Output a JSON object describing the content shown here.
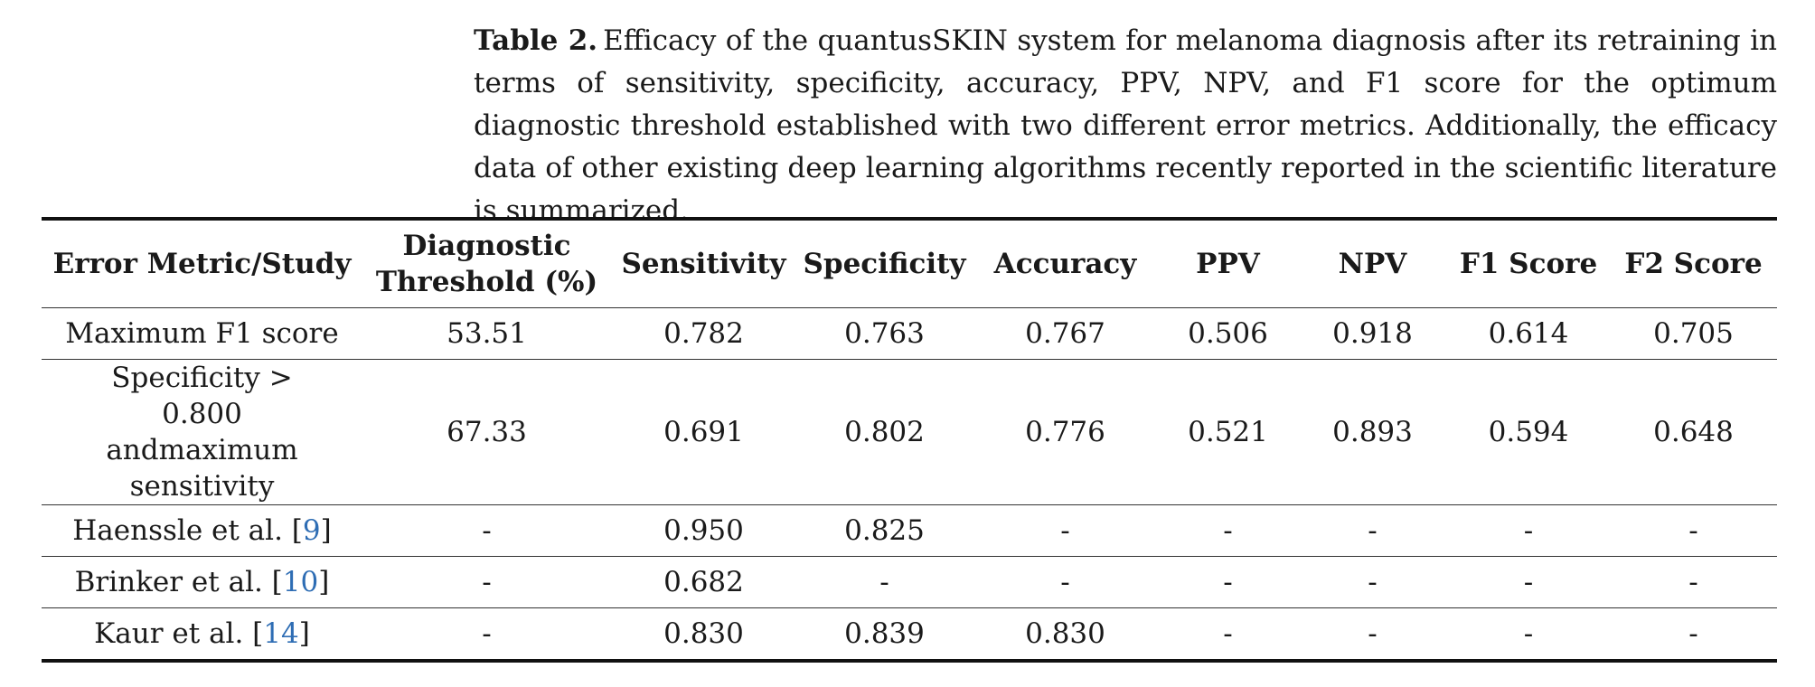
{
  "caption": {
    "label": "Table 2.",
    "text": "Efficacy of the quantusSKIN system for melanoma diagnosis after its retraining in terms of sensitivity, specificity, accuracy, PPV, NPV, and F1 score for the optimum diagnostic threshold established with two different error metrics. Additionally, the efficacy data of other existing deep learning algorithms recently reported in the scientific literature is summarized."
  },
  "table": {
    "headers": [
      "Error Metric/Study",
      "Diagnostic Threshold (%)",
      "Sensitivity",
      "Specificity",
      "Accuracy",
      "PPV",
      "NPV",
      "F1 Score",
      "F2 Score"
    ],
    "rows": [
      {
        "study": "Maximum F1 score",
        "ref": "",
        "values": [
          "53.51",
          "0.782",
          "0.763",
          "0.767",
          "0.506",
          "0.918",
          "0.614",
          "0.705"
        ]
      },
      {
        "study": "Specificity > 0.800 andmaximum sensitivity",
        "ref": "",
        "values": [
          "67.33",
          "0.691",
          "0.802",
          "0.776",
          "0.521",
          "0.893",
          "0.594",
          "0.648"
        ]
      },
      {
        "study": "Haenssle et al. [",
        "ref": "9",
        "values": [
          "-",
          "0.950",
          "0.825",
          "-",
          "-",
          "-",
          "-",
          "-"
        ]
      },
      {
        "study": "Brinker et al. [",
        "ref": "10",
        "values": [
          "-",
          "0.682",
          "-",
          "-",
          "-",
          "-",
          "-",
          "-"
        ]
      },
      {
        "study": "Kaur et al. [",
        "ref": "14",
        "values": [
          "-",
          "0.830",
          "0.839",
          "0.830",
          "-",
          "-",
          "-",
          "-"
        ]
      }
    ]
  }
}
